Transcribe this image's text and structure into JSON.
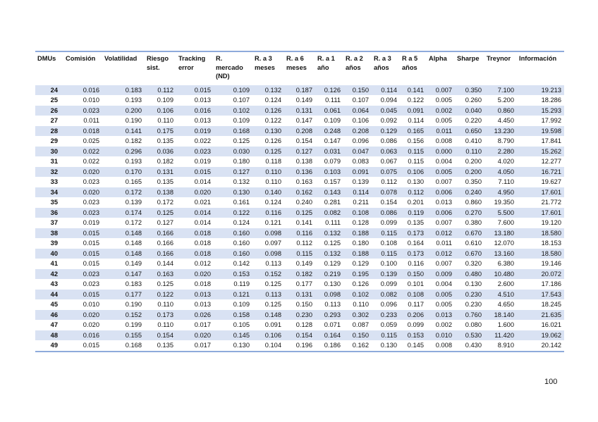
{
  "table": {
    "headers": [
      "DMUs",
      "Comisión",
      "Volatilidad",
      "Riesgo sist.",
      "Tracking error",
      "R. mercado (ND)",
      "R. a 3 meses",
      "R. a 6 meses",
      "R. a 1 año",
      "R. a 2 años",
      "R. a 3 años",
      "R a 5 años",
      "Alpha",
      "Sharpe",
      "Treynor",
      "Información"
    ],
    "rows": [
      [
        "24",
        "0.016",
        "0.183",
        "0.112",
        "0.015",
        "0.109",
        "0.132",
        "0.187",
        "0.126",
        "0.150",
        "0.114",
        "0.141",
        "0.007",
        "0.350",
        "7.100",
        "19.213"
      ],
      [
        "25",
        "0.010",
        "0.193",
        "0.109",
        "0.013",
        "0.107",
        "0.124",
        "0.149",
        "0.111",
        "0.107",
        "0.094",
        "0.122",
        "0.005",
        "0.260",
        "5.200",
        "18.286"
      ],
      [
        "26",
        "0.023",
        "0.200",
        "0.106",
        "0.016",
        "0.102",
        "0.126",
        "0.131",
        "0.061",
        "0.064",
        "0.045",
        "0.091",
        "0.002",
        "0.040",
        "0.860",
        "15.293"
      ],
      [
        "27",
        "0.011",
        "0.190",
        "0.110",
        "0.013",
        "0.109",
        "0.122",
        "0.147",
        "0.109",
        "0.106",
        "0.092",
        "0.114",
        "0.005",
        "0.220",
        "4.450",
        "17.992"
      ],
      [
        "28",
        "0.018",
        "0.141",
        "0.175",
        "0.019",
        "0.168",
        "0.130",
        "0.208",
        "0.248",
        "0.208",
        "0.129",
        "0.165",
        "0.011",
        "0.650",
        "13.230",
        "19.598"
      ],
      [
        "29",
        "0.025",
        "0.182",
        "0.135",
        "0.022",
        "0.125",
        "0.126",
        "0.154",
        "0.147",
        "0.096",
        "0.086",
        "0.156",
        "0.008",
        "0.410",
        "8.790",
        "17.841"
      ],
      [
        "30",
        "0.022",
        "0.296",
        "0.036",
        "0.023",
        "0.030",
        "0.125",
        "0.127",
        "0.031",
        "0.047",
        "0.063",
        "0.115",
        "0.000",
        "0.110",
        "2.280",
        "15.262"
      ],
      [
        "31",
        "0.022",
        "0.193",
        "0.182",
        "0.019",
        "0.180",
        "0.118",
        "0.138",
        "0.079",
        "0.083",
        "0.067",
        "0.115",
        "0.004",
        "0.200",
        "4.020",
        "12.277"
      ],
      [
        "32",
        "0.020",
        "0.170",
        "0.131",
        "0.015",
        "0.127",
        "0.110",
        "0.136",
        "0.103",
        "0.091",
        "0.075",
        "0.106",
        "0.005",
        "0.200",
        "4.050",
        "16.721"
      ],
      [
        "33",
        "0.023",
        "0.165",
        "0.135",
        "0.014",
        "0.132",
        "0.110",
        "0.163",
        "0.157",
        "0.139",
        "0.112",
        "0.130",
        "0.007",
        "0.350",
        "7.110",
        "19.627"
      ],
      [
        "34",
        "0.020",
        "0.172",
        "0.138",
        "0.020",
        "0.130",
        "0.140",
        "0.162",
        "0.143",
        "0.114",
        "0.078",
        "0.112",
        "0.006",
        "0.240",
        "4.950",
        "17.601"
      ],
      [
        "35",
        "0.023",
        "0.139",
        "0.172",
        "0.021",
        "0.161",
        "0.124",
        "0.240",
        "0.281",
        "0.211",
        "0.154",
        "0.201",
        "0.013",
        "0.860",
        "19.350",
        "21.772"
      ],
      [
        "36",
        "0.023",
        "0.174",
        "0.125",
        "0.014",
        "0.122",
        "0.116",
        "0.125",
        "0.082",
        "0.108",
        "0.086",
        "0.119",
        "0.006",
        "0.270",
        "5.500",
        "17.601"
      ],
      [
        "37",
        "0.019",
        "0.172",
        "0.127",
        "0.014",
        "0.124",
        "0.121",
        "0.141",
        "0.111",
        "0.128",
        "0.099",
        "0.135",
        "0.007",
        "0.380",
        "7.600",
        "19.120"
      ],
      [
        "38",
        "0.015",
        "0.148",
        "0.166",
        "0.018",
        "0.160",
        "0.098",
        "0.116",
        "0.132",
        "0.188",
        "0.115",
        "0.173",
        "0.012",
        "0.670",
        "13.180",
        "18.580"
      ],
      [
        "39",
        "0.015",
        "0.148",
        "0.166",
        "0.018",
        "0.160",
        "0.097",
        "0.112",
        "0.125",
        "0.180",
        "0.108",
        "0.164",
        "0.011",
        "0.610",
        "12.070",
        "18.153"
      ],
      [
        "40",
        "0.015",
        "0.148",
        "0.166",
        "0.018",
        "0.160",
        "0.098",
        "0.115",
        "0.132",
        "0.188",
        "0.115",
        "0.173",
        "0.012",
        "0.670",
        "13.160",
        "18.580"
      ],
      [
        "41",
        "0.015",
        "0.149",
        "0.144",
        "0.012",
        "0.142",
        "0.113",
        "0.149",
        "0.129",
        "0.129",
        "0.100",
        "0.116",
        "0.007",
        "0.320",
        "6.380",
        "19.146"
      ],
      [
        "42",
        "0.023",
        "0.147",
        "0.163",
        "0.020",
        "0.153",
        "0.152",
        "0.182",
        "0.219",
        "0.195",
        "0.139",
        "0.150",
        "0.009",
        "0.480",
        "10.480",
        "20.072"
      ],
      [
        "43",
        "0.023",
        "0.183",
        "0.125",
        "0.018",
        "0.119",
        "0.125",
        "0.177",
        "0.130",
        "0.126",
        "0.099",
        "0.101",
        "0.004",
        "0.130",
        "2.600",
        "17.186"
      ],
      [
        "44",
        "0.015",
        "0.177",
        "0.122",
        "0.013",
        "0.121",
        "0.113",
        "0.131",
        "0.098",
        "0.102",
        "0.082",
        "0.108",
        "0.005",
        "0.230",
        "4.510",
        "17.543"
      ],
      [
        "45",
        "0.010",
        "0.190",
        "0.110",
        "0.013",
        "0.109",
        "0.125",
        "0.150",
        "0.113",
        "0.110",
        "0.096",
        "0.117",
        "0.005",
        "0.230",
        "4.650",
        "18.245"
      ],
      [
        "46",
        "0.020",
        "0.152",
        "0.173",
        "0.026",
        "0.158",
        "0.148",
        "0.230",
        "0.293",
        "0.302",
        "0.233",
        "0.206",
        "0.013",
        "0.760",
        "18.140",
        "21.635"
      ],
      [
        "47",
        "0.020",
        "0.199",
        "0.110",
        "0.017",
        "0.105",
        "0.091",
        "0.128",
        "0.071",
        "0.087",
        "0.059",
        "0.099",
        "0.002",
        "0.080",
        "1.600",
        "16.021"
      ],
      [
        "48",
        "0.016",
        "0.155",
        "0.154",
        "0.020",
        "0.145",
        "0.106",
        "0.154",
        "0.164",
        "0.150",
        "0.115",
        "0.153",
        "0.010",
        "0.530",
        "11.420",
        "19.062"
      ],
      [
        "49",
        "0.015",
        "0.168",
        "0.135",
        "0.017",
        "0.130",
        "0.104",
        "0.196",
        "0.186",
        "0.162",
        "0.130",
        "0.145",
        "0.008",
        "0.430",
        "8.910",
        "20.142"
      ]
    ]
  },
  "page_number": "100",
  "colors": {
    "band": "#d9e2f3",
    "rule": "#8eaadb"
  }
}
